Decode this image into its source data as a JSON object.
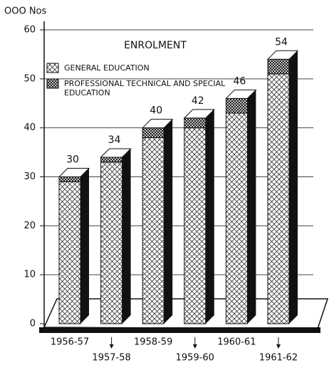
{
  "chart_data": {
    "type": "bar3d_stacked",
    "title": "ENROLMENT",
    "y_label": "OOO Nos",
    "categories": [
      "1956-57",
      "1957-58",
      "1958-59",
      "1959-60",
      "1960-61",
      "1961-62"
    ],
    "series": [
      {
        "name": "GENERAL EDUCATION",
        "color": "#ffffff",
        "values": [
          29,
          33,
          38,
          40,
          43,
          51
        ]
      },
      {
        "name": "PROFESSIONAL TECHNICAL AND SPECIAL EDUCATION",
        "color": "#888888",
        "values": [
          1,
          1,
          2,
          2,
          3,
          3
        ]
      }
    ],
    "totals": [
      30,
      34,
      40,
      42,
      46,
      54
    ],
    "ylim": [
      0,
      60
    ],
    "yticks": [
      0,
      10,
      20,
      30,
      40,
      50,
      60
    ],
    "grid": true
  }
}
